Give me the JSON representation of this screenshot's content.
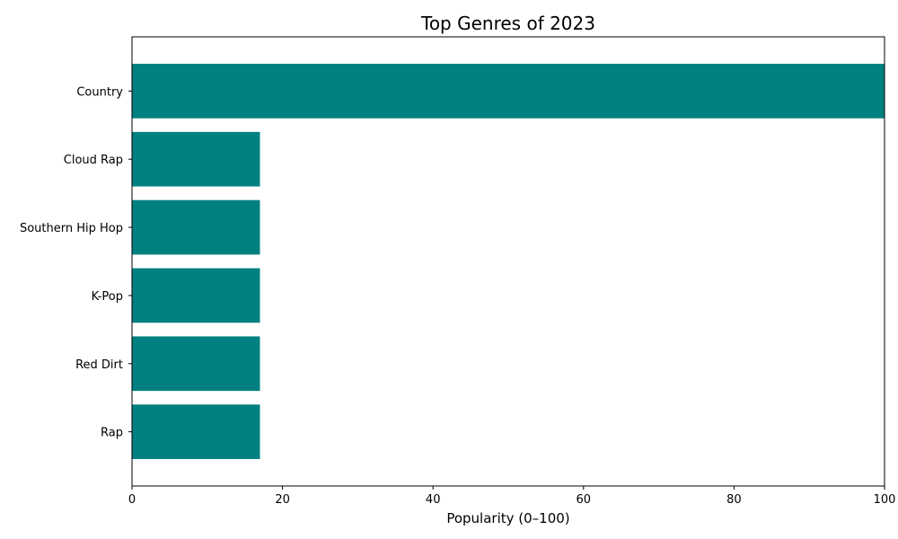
{
  "chart_data": {
    "type": "bar",
    "orientation": "horizontal",
    "title": "Top Genres of 2023",
    "xlabel": "Popularity (0–100)",
    "ylabel": "",
    "categories": [
      "Country",
      "Cloud Rap",
      "Southern Hip Hop",
      "K-Pop",
      "Red Dirt",
      "Rap"
    ],
    "values": [
      100,
      17,
      17,
      17,
      17,
      17
    ],
    "xlim": [
      0,
      100
    ],
    "xticks": [
      0,
      20,
      40,
      60,
      80,
      100
    ],
    "bar_color": "#008080",
    "grid": false,
    "legend": "none"
  }
}
